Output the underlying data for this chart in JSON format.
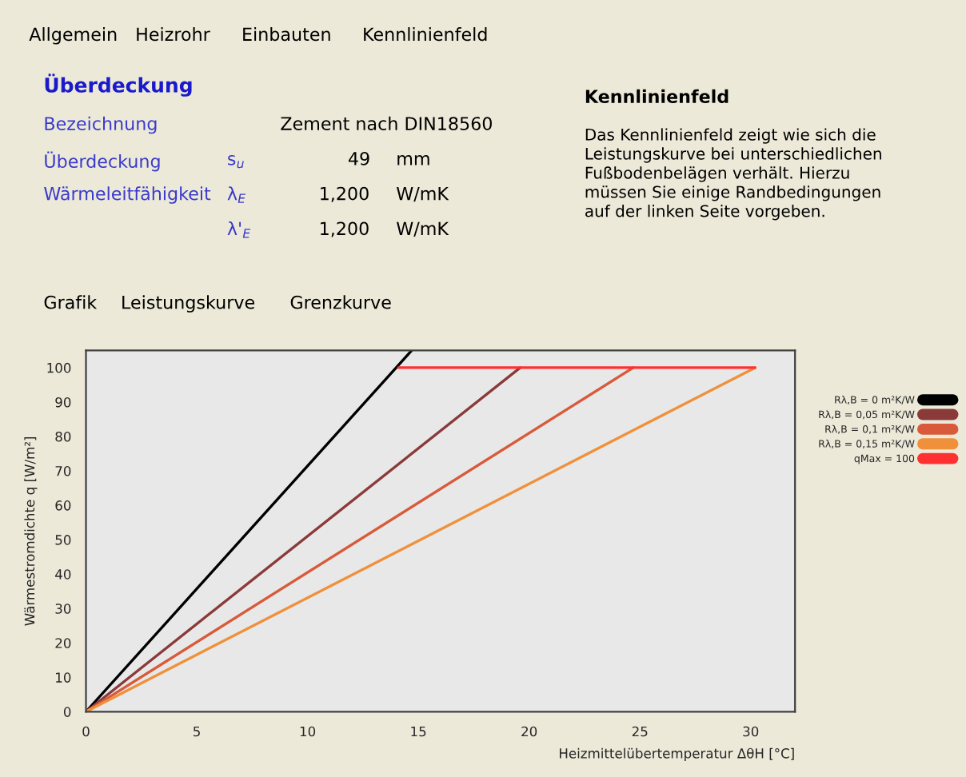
{
  "chart_data": {
    "type": "line",
    "xlabel": "Heizmittelübertemperatur ΔθH [°C]",
    "ylabel": "Wärmestromdichte q [W/m²]",
    "xlim": [
      0,
      32
    ],
    "xticks": [
      0,
      5,
      10,
      15,
      20,
      25,
      30
    ],
    "ylim": [
      0,
      105
    ],
    "yticks": [
      0,
      10,
      20,
      30,
      40,
      50,
      60,
      70,
      80,
      90,
      100
    ],
    "grid": false,
    "legend": "right",
    "marker": "none",
    "line_style": "solid",
    "series": [
      {
        "name": "Rλ,B = 0 m²K/W",
        "color": "#000000",
        "x": [
          0,
          14.7
        ],
        "values": [
          0,
          105
        ]
      },
      {
        "name": "Rλ,B = 0,05 m²K/W",
        "color": "#8b3a3a",
        "x": [
          0,
          19.6
        ],
        "values": [
          0,
          100
        ]
      },
      {
        "name": "Rλ,B = 0,1 m²K/W",
        "color": "#d85a3a",
        "x": [
          0,
          24.7
        ],
        "values": [
          0,
          100
        ]
      },
      {
        "name": "Rλ,B = 0,15 m²K/W",
        "color": "#f0903a",
        "x": [
          0,
          30.2
        ],
        "values": [
          0,
          100
        ]
      },
      {
        "name": "qMax = 100",
        "color": "#ff3030",
        "x": [
          14.1,
          30.2
        ],
        "values": [
          100,
          100
        ]
      }
    ],
    "annotations": [
      "Allgemein",
      "Heizrohr",
      "Einbauten",
      "Kennlinienfeld",
      "Überdeckung",
      "Bezeichnung",
      "Zement nach DIN18560",
      "Überdeckung",
      "s$_{u}$",
      "49",
      "mm",
      "Wärmeleitfähigkeit",
      "λ$_{E}$",
      "1,200",
      "W/mK",
      "λ'$_{E}$",
      "1,200",
      "W/mK",
      "Kennlinienfeld",
      "Das Kennlinienfeld zeigt wie sich die\nLeistungskurve bei unterschiedlichen\nFußbodenbelägen verhält. Hierzu\nmüssen Sie einige Randbedingungen\nauf der linken Seite vorgeben.",
      "Grafik",
      "Leistungskurve",
      "Grenzkurve"
    ]
  }
}
